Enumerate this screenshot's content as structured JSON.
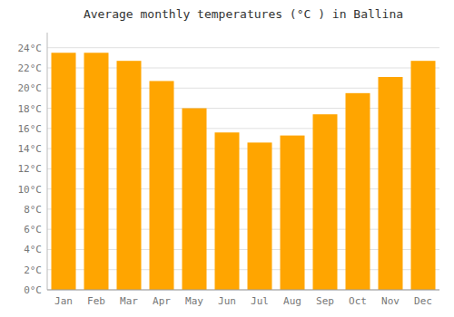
{
  "chart_data": {
    "type": "bar",
    "title": "Average monthly temperatures (°C ) in Ballina",
    "categories": [
      "Jan",
      "Feb",
      "Mar",
      "Apr",
      "May",
      "Jun",
      "Jul",
      "Aug",
      "Sep",
      "Oct",
      "Nov",
      "Dec"
    ],
    "values": [
      23.5,
      23.5,
      22.7,
      20.7,
      18.0,
      15.6,
      14.6,
      15.3,
      17.4,
      19.5,
      21.1,
      22.7
    ],
    "color": "#FFA500",
    "ylim": [
      0,
      25.5
    ],
    "yticks": [
      {
        "value": 0,
        "label": "0°C"
      },
      {
        "value": 2,
        "label": "2°C"
      },
      {
        "value": 4,
        "label": "4°C"
      },
      {
        "value": 6,
        "label": "6°C"
      },
      {
        "value": 8,
        "label": "8°C"
      },
      {
        "value": 10,
        "label": "10°C"
      },
      {
        "value": 12,
        "label": "12°C"
      },
      {
        "value": 14,
        "label": "14°C"
      },
      {
        "value": 16,
        "label": "16°C"
      },
      {
        "value": 18,
        "label": "18°C"
      },
      {
        "value": 20,
        "label": "20°C"
      },
      {
        "value": 22,
        "label": "22°C"
      },
      {
        "value": 24,
        "label": "24°C"
      }
    ],
    "grid": true
  }
}
